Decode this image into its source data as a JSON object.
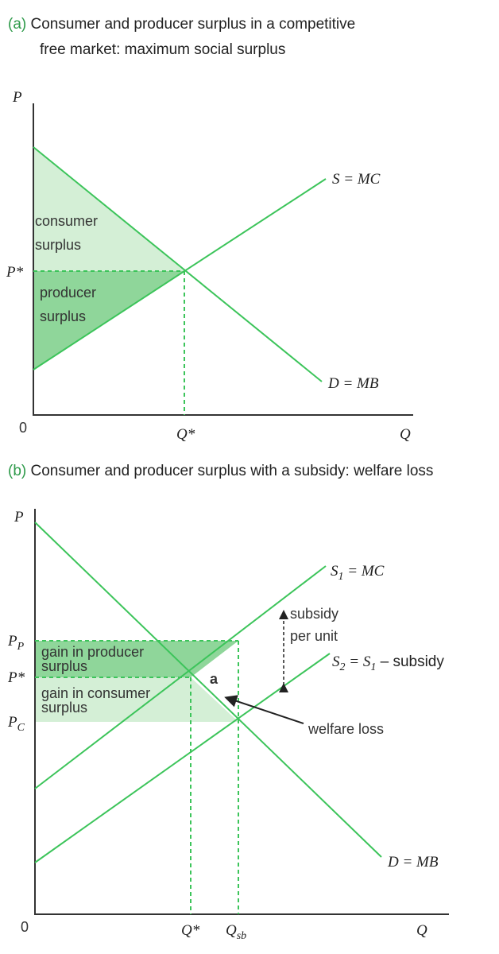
{
  "colors": {
    "line": "#3cc45a",
    "light_fill": "#d4efd6",
    "dark_fill": "#8fd69a",
    "tag": "#2e9a4a"
  },
  "panel_a": {
    "tag": "(a)",
    "title_line1": "Consumer and producer surplus in a competitive",
    "title_line2": "free market: maximum social surplus",
    "y_axis": "P",
    "x_axis": "Q",
    "origin": "0",
    "price_label": "P*",
    "quantity_label": "Q*",
    "supply_label": "S = MC",
    "demand_label": "D = MB",
    "consumer_surplus": [
      "consumer",
      "surplus"
    ],
    "producer_surplus": [
      "producer",
      "surplus"
    ]
  },
  "panel_b": {
    "tag": "(b)",
    "title": "Consumer and producer surplus with a subsidy: welfare loss",
    "y_axis": "P",
    "x_axis": "Q",
    "origin": "0",
    "pp": {
      "main": "P",
      "sub": "P"
    },
    "pstar": "P*",
    "pc": {
      "main": "P",
      "sub": "C"
    },
    "qstar": "Q*",
    "qsb": {
      "main": "Q",
      "sub": "sb"
    },
    "s1_label": {
      "a": "S",
      "sub": "1",
      "b": " = MC"
    },
    "s2_label": {
      "a": "S",
      "sub1": "2",
      "b": " = S",
      "sub2": "1",
      "c": " – subsidy"
    },
    "demand_label": "D = MB",
    "subsidy": [
      "subsidy",
      "per unit"
    ],
    "producer_gain": [
      "gain in producer",
      "surplus"
    ],
    "consumer_gain": [
      "gain in consumer",
      "surplus"
    ],
    "area_a": "a",
    "welfare_loss": "welfare loss"
  }
}
